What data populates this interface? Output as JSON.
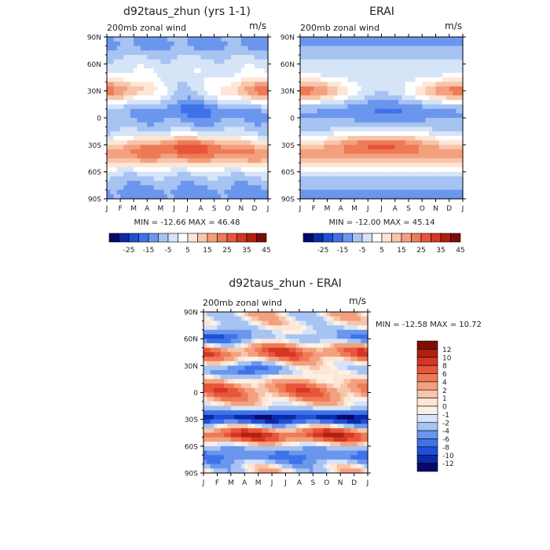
{
  "panels": [
    {
      "id": "model",
      "title": "d92taus_zhun (yrs 1-1)",
      "left_label": "200mb zonal wind",
      "right_label": "m/s",
      "stats": "MIN = -12.66  MAX =  46.48"
    },
    {
      "id": "obs",
      "title": "ERAI",
      "left_label": "200mb zonal wind",
      "right_label": "m/s",
      "stats": "MIN = -12.00  MAX =  45.14"
    },
    {
      "id": "diff",
      "title": "d92taus_zhun - ERAI",
      "left_label": "200mb zonal wind",
      "right_label": "m/s",
      "stats": "MIN = -12.58  MAX =  10.72"
    }
  ],
  "chart_data": [
    {
      "type": "heatmap",
      "title": "d92taus_zhun (yrs 1-1)",
      "xlabel": "",
      "ylabel": "",
      "x_tick_labels": [
        "J",
        "F",
        "M",
        "A",
        "M",
        "J",
        "J",
        "A",
        "S",
        "O",
        "N",
        "D",
        "J"
      ],
      "y_tick_labels": [
        "90N",
        "60N",
        "30N",
        "0",
        "30S",
        "60S",
        "90S"
      ],
      "ylim": [
        -90,
        90
      ],
      "min": -12.66,
      "max": 46.48,
      "colorbar_levels": [
        -30,
        -25,
        -20,
        -15,
        -10,
        -5,
        0,
        5,
        10,
        15,
        20,
        25,
        30,
        35,
        40,
        45,
        50
      ],
      "colorbar_labels": [
        "-25",
        "-15",
        "-5",
        "5",
        "15",
        "25",
        "35",
        "45"
      ]
    },
    {
      "type": "heatmap",
      "title": "ERAI",
      "xlabel": "",
      "ylabel": "",
      "x_tick_labels": [
        "J",
        "F",
        "M",
        "A",
        "M",
        "J",
        "J",
        "A",
        "S",
        "O",
        "N",
        "D",
        "J"
      ],
      "y_tick_labels": [
        "90N",
        "60N",
        "30N",
        "0",
        "30S",
        "60S",
        "90S"
      ],
      "ylim": [
        -90,
        90
      ],
      "min": -12.0,
      "max": 45.14,
      "colorbar_levels": [
        -30,
        -25,
        -20,
        -15,
        -10,
        -5,
        0,
        5,
        10,
        15,
        20,
        25,
        30,
        35,
        40,
        45,
        50
      ],
      "colorbar_labels": [
        "-25",
        "-15",
        "-5",
        "5",
        "15",
        "25",
        "35",
        "45"
      ]
    },
    {
      "type": "heatmap",
      "title": "d92taus_zhun - ERAI",
      "xlabel": "",
      "ylabel": "",
      "x_tick_labels": [
        "J",
        "F",
        "M",
        "A",
        "M",
        "J",
        "J",
        "A",
        "S",
        "O",
        "N",
        "D",
        "J"
      ],
      "y_tick_labels": [
        "90N",
        "60N",
        "30N",
        "0",
        "30S",
        "60S",
        "90S"
      ],
      "ylim": [
        -90,
        90
      ],
      "min": -12.58,
      "max": 10.72,
      "colorbar_levels": [
        -12,
        -10,
        -8,
        -6,
        -4,
        -2,
        -1,
        0,
        1,
        2,
        4,
        6,
        8,
        10,
        12
      ],
      "colorbar_labels": [
        "12",
        "10",
        "8",
        "6",
        "4",
        "2",
        "1",
        "0",
        "-1",
        "-2",
        "-4",
        "-6",
        "-8",
        "-10",
        "-12"
      ]
    }
  ],
  "colors": {
    "full_palette": [
      "#08086b",
      "#0a2aa8",
      "#1f4fd6",
      "#3f72ea",
      "#6b96ee",
      "#a6c3f2",
      "#d6e4f8",
      "#ffffff",
      "#fde6d6",
      "#f8c5ab",
      "#f3a07e",
      "#ee7a56",
      "#e8553a",
      "#d43624",
      "#b0200f",
      "#7d0d04"
    ],
    "diff_palette": [
      "#08086b",
      "#0a2aa8",
      "#1f4fd6",
      "#3f72ea",
      "#6b96ee",
      "#a6c3f2",
      "#d6e4f8",
      "#fdf1e4",
      "#fde6d6",
      "#f8c5ab",
      "#f3a07e",
      "#ee7a56",
      "#e8553a",
      "#d43624",
      "#b0200f",
      "#7d0d04"
    ]
  }
}
